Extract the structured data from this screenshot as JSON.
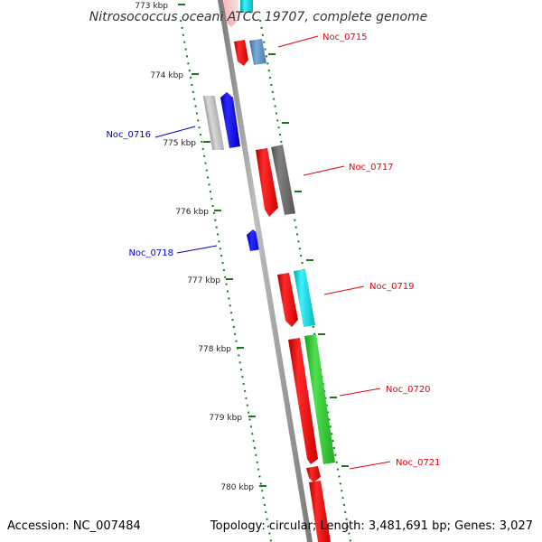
{
  "title": "Nitrosococcus oceani ATCC 19707, complete genome",
  "footer": {
    "accession": "Accession: NC_007484",
    "summary": "Topology: circular; Length: 3,481,691 bp; Genes: 3,027"
  },
  "ticks": [
    {
      "label": "773 kbp"
    },
    {
      "label": "774 kbp"
    },
    {
      "label": "775 kbp"
    },
    {
      "label": "776 kbp"
    },
    {
      "label": "777 kbp"
    },
    {
      "label": "778 kbp"
    },
    {
      "label": "779 kbp"
    },
    {
      "label": "780 kbp"
    }
  ],
  "genes": [
    {
      "name": "Noc_0715",
      "color": "#e8000b"
    },
    {
      "name": "Noc_0716",
      "color": "#0000cc"
    },
    {
      "name": "Noc_0717",
      "color": "#e8000b"
    },
    {
      "name": "Noc_0718",
      "color": "#0000cc"
    },
    {
      "name": "Noc_0719",
      "color": "#e8000b"
    },
    {
      "name": "Noc_0720",
      "color": "#e8000b"
    },
    {
      "name": "Noc_0721",
      "color": "#e8000b"
    }
  ],
  "colors": {
    "backbone": "#888888",
    "tick_marks": "#1a7a1a",
    "forward_cds": "#ff0000",
    "reverse_cds": "#0000ff"
  }
}
